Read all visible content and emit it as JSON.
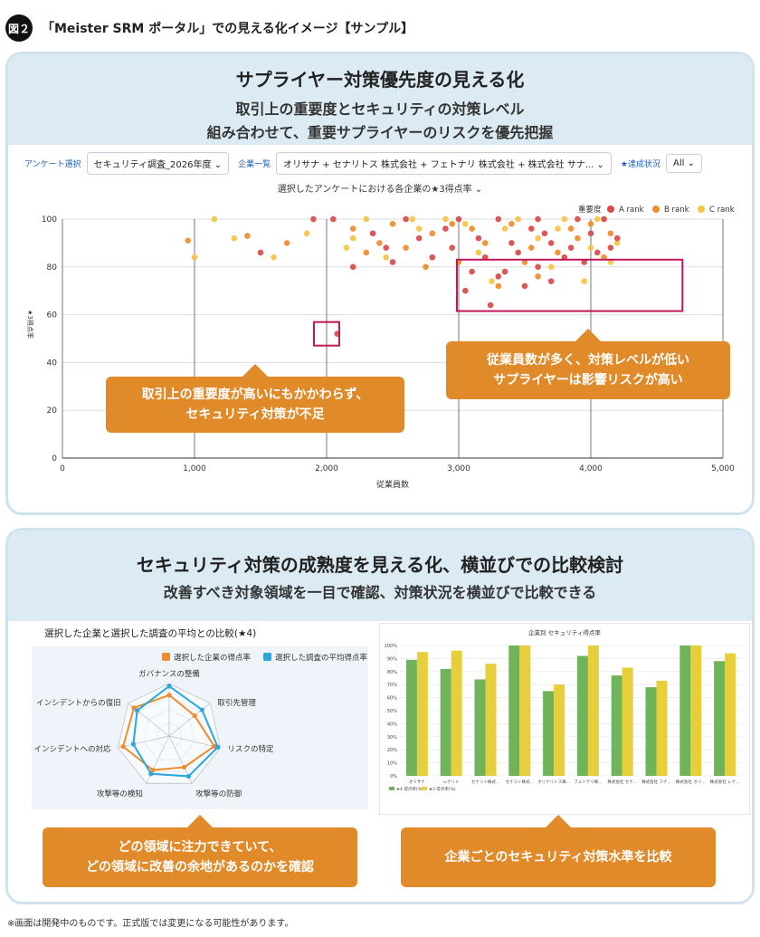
{
  "figure": {
    "badge": "図２",
    "title": "「Meister SRM ポータル」での見える化イメージ【サンプル】"
  },
  "panel1": {
    "heading": "サプライヤー対策優先度の見える化",
    "sub1": "取引上の重要度とセキュリティの対策レベル",
    "sub2": "組み合わせて、重要サプライヤーのリスクを優先把握",
    "filters": {
      "survey_label": "アンケート選択",
      "survey_value": "セキュリティ調査_2026年度 ⌄",
      "company_label": "企業一覧",
      "company_value": "オリサナ + セナリトス 株式会社 + フェトナリ 株式会社 + 株式会社 サナ... ⌄",
      "status_label": "★達成状況",
      "status_value": "All ⌄"
    },
    "chart_title": "選択したアンケートにおける各企業の★3得点率 ⌄",
    "callout_left": "取引上の重要度が高いにもかかわらず、\nセキュリティ対策が不足",
    "callout_right": "従業員数が多く、対策レベルが低い\nサプライヤーは影響リスクが高い"
  },
  "panel2": {
    "heading": "セキュリティ対策の成熟度を見える化、横並びでの比較検討",
    "sub": "改善すべき対象領域を一目で確認、対策状況を横並びで比較できる",
    "callout_left": "どの領域に注力できていて、\nどの領域に改善の余地があるのかを確認",
    "callout_right": "企業ごとのセキュリティ対策水準を比較"
  },
  "footnote": "※画面は開発中のものです。正式版では変更になる可能性があります。",
  "colors": {
    "a_rank": "#d84a4a",
    "b_rank": "#f08c2c",
    "c_rank": "#f6c445",
    "bar_green": "#6fb35a",
    "bar_yellow": "#e6cf3a",
    "radar_orange": "#f08c2c",
    "radar_blue": "#2aa7dd",
    "highlight": "#c0185a"
  },
  "chart_data": [
    {
      "type": "scatter",
      "title": "選択したアンケートにおける各企業の★3得点率",
      "xlabel": "従業員数",
      "ylabel": "★3得点率",
      "xlim": [
        0,
        5000
      ],
      "ylim": [
        0,
        100
      ],
      "xticks": [
        "0",
        "1,000",
        "2,000",
        "3,000",
        "4,000",
        "5,000"
      ],
      "yticks": [
        "0",
        "20",
        "40",
        "60",
        "80",
        "100"
      ],
      "legend_title": "重要度",
      "legend_position": "top-right",
      "grid": true,
      "series": [
        {
          "name": "A rank",
          "points": [
            [
              2080,
              52
            ],
            [
              3240,
              64
            ],
            [
              3300,
              76
            ],
            [
              3050,
              70
            ],
            [
              3100,
              78
            ],
            [
              3500,
              72
            ],
            [
              3350,
              78
            ],
            [
              3600,
              80
            ],
            [
              3700,
              74
            ],
            [
              3950,
              82
            ],
            [
              2200,
              80
            ],
            [
              2450,
              88
            ],
            [
              2700,
              92
            ],
            [
              2900,
              96
            ],
            [
              3150,
              92
            ],
            [
              3400,
              90
            ],
            [
              3650,
              94
            ],
            [
              3850,
              88
            ],
            [
              4050,
              86
            ],
            [
              4200,
              92
            ],
            [
              2050,
              100
            ],
            [
              2600,
              100
            ],
            [
              3000,
              100
            ],
            [
              3300,
              100
            ],
            [
              3600,
              100
            ],
            [
              3900,
              100
            ],
            [
              4100,
              100
            ],
            [
              1500,
              86
            ],
            [
              1900,
              100
            ],
            [
              3800,
              84
            ],
            [
              4000,
              94
            ],
            [
              3200,
              84
            ],
            [
              2500,
              82
            ],
            [
              3450,
              86
            ],
            [
              2800,
              84
            ],
            [
              3700,
              90
            ],
            [
              4150,
              88
            ],
            [
              3550,
              96
            ],
            [
              2350,
              94
            ],
            [
              2950,
              88
            ]
          ]
        },
        {
          "name": "B rank",
          "points": [
            [
              950,
              91
            ],
            [
              1400,
              93
            ],
            [
              1700,
              90
            ],
            [
              3300,
              72
            ],
            [
              3500,
              82
            ],
            [
              2300,
              86
            ],
            [
              2600,
              88
            ],
            [
              2800,
              94
            ],
            [
              3100,
              96
            ],
            [
              3400,
              98
            ],
            [
              3750,
              86
            ],
            [
              3900,
              92
            ],
            [
              4100,
              84
            ],
            [
              2200,
              96
            ],
            [
              2500,
              98
            ],
            [
              3000,
              82
            ],
            [
              3600,
              76
            ],
            [
              2750,
              80
            ],
            [
              3200,
              90
            ],
            [
              4000,
              98
            ],
            [
              4150,
              94
            ],
            [
              3850,
              96
            ],
            [
              2400,
              90
            ],
            [
              2950,
              98
            ],
            [
              3550,
              88
            ]
          ]
        },
        {
          "name": "C rank",
          "points": [
            [
              1000,
              84
            ],
            [
              1150,
              100
            ],
            [
              1300,
              92
            ],
            [
              1600,
              84
            ],
            [
              1850,
              94
            ],
            [
              2300,
              100
            ],
            [
              2650,
              100
            ],
            [
              3050,
              98
            ],
            [
              3450,
              100
            ],
            [
              3800,
              100
            ],
            [
              4100,
              100
            ],
            [
              2200,
              92
            ],
            [
              2700,
              96
            ],
            [
              3150,
              86
            ],
            [
              3250,
              74
            ],
            [
              3700,
              80
            ],
            [
              4200,
              90
            ],
            [
              2450,
              84
            ],
            [
              2900,
              100
            ],
            [
              3600,
              92
            ],
            [
              4000,
              88
            ],
            [
              3950,
              74
            ],
            [
              2150,
              88
            ],
            [
              3350,
              96
            ],
            [
              3750,
              96
            ],
            [
              4050,
              100
            ],
            [
              4150,
              82
            ]
          ]
        }
      ]
    },
    {
      "type": "radar",
      "title": "選択した企業と選択した調査の平均との比較(★4)",
      "axes": [
        "ガバナンスの整備",
        "取引先管理",
        "リスクの特定",
        "攻撃等の防御",
        "攻撃等の検知",
        "インシデントへの対応",
        "インシデントからの復旧"
      ],
      "series": [
        {
          "name": "選択した企業の得点率",
          "values": [
            0.78,
            0.62,
            0.88,
            0.66,
            0.72,
            0.9,
            0.86
          ]
        },
        {
          "name": "選択した調査の平均得点率",
          "values": [
            0.95,
            0.8,
            0.95,
            0.85,
            0.8,
            0.7,
            0.78
          ]
        }
      ]
    },
    {
      "type": "bar",
      "title": "企業別 セキュリティ得点率",
      "categories": [
        "オリサナ",
        "レナリト",
        "セナリト株式...",
        "セナミト株式...",
        "オリナリトス株...",
        "フェトナリ株...",
        "株式会社 セナ...",
        "株式会社 フナ...",
        "株式会社 オリ...",
        "株式会社 レナ..."
      ],
      "yticks": [
        "0%",
        "10%",
        "20%",
        "30%",
        "40%",
        "50%",
        "60%",
        "70%",
        "80%",
        "90%",
        "100%"
      ],
      "ylim": [
        0,
        100
      ],
      "series": [
        {
          "name": "★4 得点率(%)",
          "values": [
            89,
            82,
            74,
            100,
            65,
            92,
            77,
            68,
            100,
            88
          ]
        },
        {
          "name": "★3 得点率(%)",
          "values": [
            95,
            96,
            86,
            100,
            70,
            100,
            83,
            73,
            100,
            94
          ]
        }
      ]
    }
  ]
}
